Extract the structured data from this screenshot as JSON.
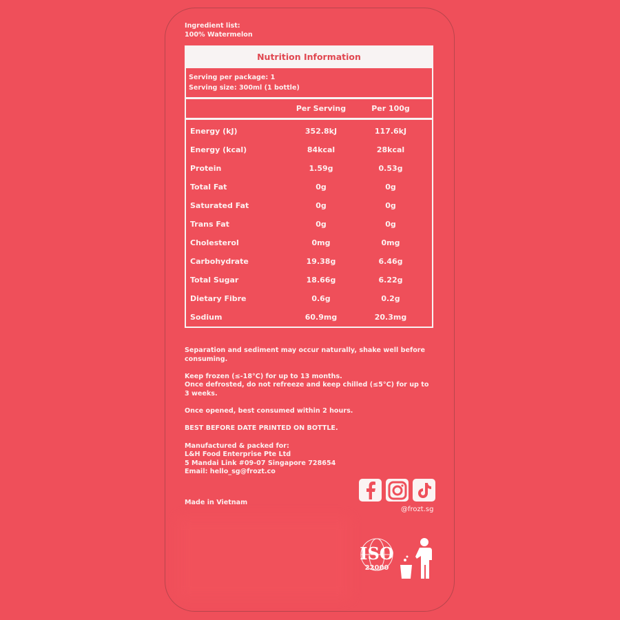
{
  "ingredients": {
    "label": "Ingredient list:",
    "value": "100% Watermelon"
  },
  "nutrition": {
    "title": "Nutrition Information",
    "serving_per_package": "Serving per package: 1",
    "serving_size": "Serving size: 300ml (1 bottle)",
    "columns": [
      "",
      "Per Serving",
      "Per 100g"
    ],
    "rows": [
      [
        "Energy (kJ)",
        "352.8kJ",
        "117.6kJ"
      ],
      [
        "Energy (kcal)",
        "84kcal",
        "28kcal"
      ],
      [
        "Protein",
        "1.59g",
        "0.53g"
      ],
      [
        "Total Fat",
        "0g",
        "0g"
      ],
      [
        "Saturated Fat",
        "0g",
        "0g"
      ],
      [
        "Trans Fat",
        "0g",
        "0g"
      ],
      [
        "Cholesterol",
        "0mg",
        "0mg"
      ],
      [
        "Carbohydrate",
        "19.38g",
        "6.46g"
      ],
      [
        "Total Sugar",
        "18.66g",
        "6.22g"
      ],
      [
        "Dietary Fibre",
        "0.6g",
        "0.2g"
      ],
      [
        "Sodium",
        "60.9mg",
        "20.3mg"
      ]
    ]
  },
  "notes": {
    "separation": "Separation and sediment may occur naturally, shake well before consuming.",
    "frozen": "Keep frozen (≤-18°C) for up to 13 months.",
    "defrosted": "Once defrosted, do not refreeze and keep chilled (≤5°C) for up to 3 weeks.",
    "opened": "Once opened, best consumed within 2 hours.",
    "best_before": "BEST BEFORE DATE PRINTED ON BOTTLE.",
    "manufacturer": [
      "Manufactured & packed for:",
      "L&H Food Enterprise Pte Ltd",
      "5 Mandai Link #09-07 Singapore 728654",
      "Email: hello_sg@frozt.co"
    ],
    "origin": "Made in Vietnam"
  },
  "social": {
    "icons": [
      "facebook-icon",
      "instagram-icon",
      "tiktok-icon"
    ],
    "handle": "@frozt.sg"
  },
  "badges": {
    "iso": "ISO",
    "iso_number": "22000",
    "recycle": "tidy-man-icon"
  },
  "colors": {
    "background": "#ef4f5a",
    "text": "#fdf0f0",
    "panel": "#f8f3f3",
    "accent": "#e04650"
  }
}
